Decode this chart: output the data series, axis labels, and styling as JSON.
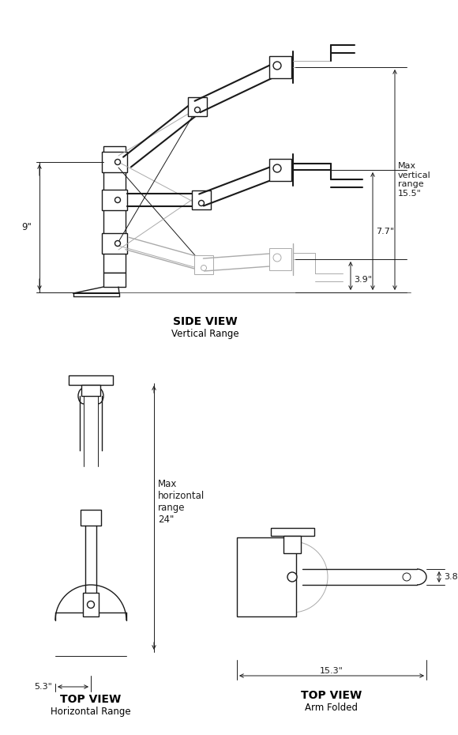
{
  "bg_color": "#ffffff",
  "line_color": "#1a1a1a",
  "gray_color": "#aaaaaa",
  "title_color": "#000000",
  "side_view_title": "SIDE VIEW",
  "side_view_subtitle": "Vertical Range",
  "top_view_title": "TOP VIEW",
  "top_view_subtitle1": "Horizontal Range",
  "top_view_title2": "TOP VIEW",
  "top_view_subtitle2": "Arm Folded",
  "dim_9": "9\"",
  "dim_3p9": "3.9\"",
  "dim_7p7": "7.7\"",
  "dim_max_vert": "Max\nvertical\nrange\n15.5\"",
  "dim_5p3": "5.3\"",
  "dim_max_horiz": "Max\nhorizontal\nrange\n24\"",
  "dim_3p8": "3.8\"",
  "dim_15p3": "15.3\""
}
